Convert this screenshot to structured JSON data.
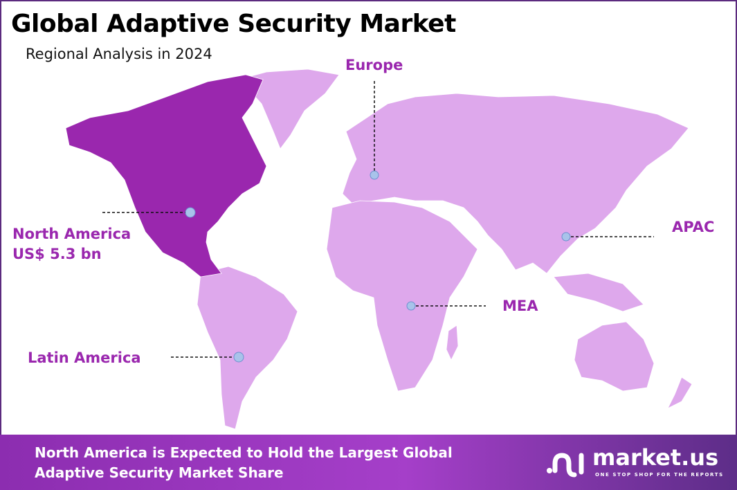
{
  "header": {
    "title": "Global Adaptive Security Market",
    "subtitle": "Regional Analysis in 2024"
  },
  "regions": [
    {
      "name": "North America",
      "value": "US$ 5.3 bn",
      "highlighted": true
    },
    {
      "name": "Europe"
    },
    {
      "name": "APAC"
    },
    {
      "name": "MEA"
    },
    {
      "name": "Latin America"
    }
  ],
  "colors": {
    "highlight": "#9a27ae",
    "land": "#dea8ec",
    "label": "#9a27ae",
    "marker": "#a8c3ea",
    "border": "#5b2a7e"
  },
  "footer": {
    "line1": "North America is Expected to Hold the Largest Global",
    "line2": "Adaptive Security Market Share"
  },
  "logo": {
    "name": "market.us",
    "tagline": "ONE STOP SHOP FOR THE REPORTS"
  }
}
